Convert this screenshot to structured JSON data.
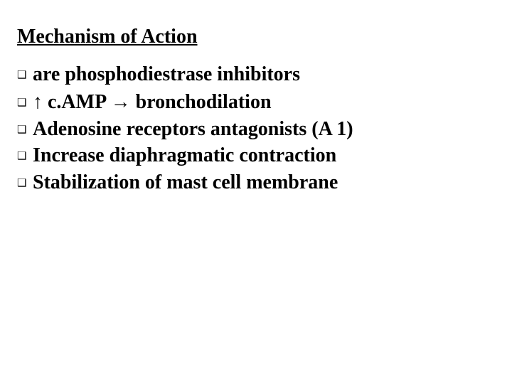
{
  "title": "Mechanism of Action",
  "bullet_marker": "❑",
  "items": [
    {
      "prefix": "",
      "text": "are  phosphodiestrase inhibitors"
    },
    {
      "prefix": "↑",
      "mid": " c.AMP ",
      "arrow": "→",
      "suffix": "  bronchodilation"
    },
    {
      "prefix": "",
      "text": "Adenosine receptors antagonists (A 1)"
    },
    {
      "prefix": "",
      "text": "Increase diaphragmatic contraction"
    },
    {
      "prefix": "",
      "text": "Stabilization of mast cell membrane"
    }
  ],
  "colors": {
    "text": "#000000",
    "background": "#ffffff"
  },
  "typography": {
    "title_fontsize": 28,
    "body_fontsize": 28,
    "marker_fontsize": 15,
    "font_family": "Times New Roman"
  }
}
